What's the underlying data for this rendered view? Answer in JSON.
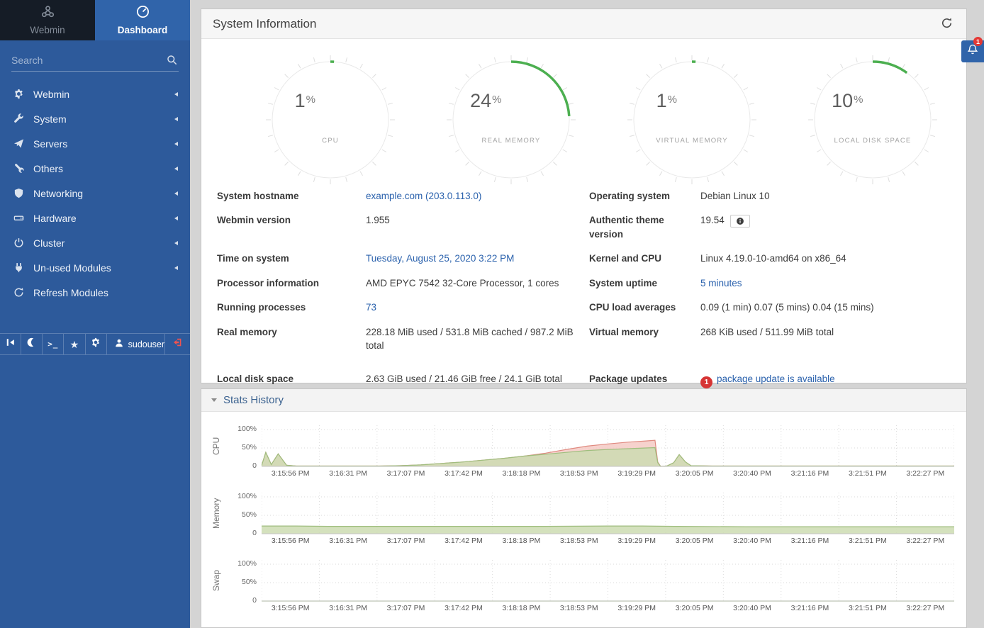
{
  "sidebar": {
    "tabs": [
      {
        "label": "Webmin"
      },
      {
        "label": "Dashboard"
      }
    ],
    "search": {
      "placeholder": "Search"
    },
    "menu": [
      {
        "label": "Webmin"
      },
      {
        "label": "System"
      },
      {
        "label": "Servers"
      },
      {
        "label": "Others"
      },
      {
        "label": "Networking"
      },
      {
        "label": "Hardware"
      },
      {
        "label": "Cluster"
      },
      {
        "label": "Un-used Modules"
      },
      {
        "label": "Refresh Modules"
      }
    ],
    "user": "sudouser"
  },
  "notifications": {
    "count": "1"
  },
  "system_info": {
    "title": "System Information",
    "rows_left": [
      {
        "label": "System hostname",
        "value": "example.com (203.0.113.0)",
        "link": true
      },
      {
        "label": "Webmin version",
        "value": "1.955",
        "link": false
      },
      {
        "label": "Time on system",
        "value": "Tuesday, August 25, 2020 3:22 PM",
        "link": true
      },
      {
        "label": "Processor information",
        "value": "AMD EPYC 7542 32-Core Processor, 1 cores",
        "link": false
      },
      {
        "label": "Running processes",
        "value": "73",
        "link": true
      },
      {
        "label": "Real memory",
        "value": "228.18 MiB used / 531.8 MiB cached / 987.2 MiB total",
        "link": false
      },
      {
        "label": "Local disk space",
        "value": "2.63 GiB used / 21.46 GiB free / 24.1 GiB total",
        "link": false
      }
    ],
    "rows_right": [
      {
        "label": "Operating system",
        "value": "Debian Linux 10",
        "link": false
      },
      {
        "label": "Authentic theme version",
        "value": "19.54",
        "link": false,
        "info_button": true
      },
      {
        "label": "Kernel and CPU",
        "value": "Linux 4.19.0-10-amd64 on x86_64",
        "link": false
      },
      {
        "label": "System uptime",
        "value": "5 minutes",
        "link": true
      },
      {
        "label": "CPU load averages",
        "value": "0.09 (1 min) 0.07 (5 mins) 0.04 (15 mins)",
        "link": false
      },
      {
        "label": "Virtual memory",
        "value": "268 KiB used / 511.99 MiB total",
        "link": false
      },
      {
        "label": "Package updates",
        "value": "package update is available",
        "link": true,
        "badge": "1"
      }
    ]
  },
  "gauges": [
    {
      "value": 1,
      "unit": "%",
      "label": "CPU"
    },
    {
      "value": 24,
      "unit": "%",
      "label": "REAL MEMORY"
    },
    {
      "value": 1,
      "unit": "%",
      "label": "VIRTUAL MEMORY"
    },
    {
      "value": 10,
      "unit": "%",
      "label": "LOCAL DISK SPACE"
    }
  ],
  "stats": {
    "title": "Stats History"
  },
  "chart_data": [
    {
      "type": "area",
      "title": "CPU",
      "ylabel": "CPU",
      "ylim": [
        0,
        100
      ],
      "grid": true,
      "y_ticks": [
        "100%",
        "50%",
        "0"
      ],
      "x_labels": [
        "3:15:56 PM",
        "3:16:31 PM",
        "3:17:07 PM",
        "3:17:42 PM",
        "3:18:18 PM",
        "3:18:53 PM",
        "3:19:29 PM",
        "3:20:05 PM",
        "3:20:40 PM",
        "3:21:16 PM",
        "3:21:51 PM",
        "3:22:27 PM"
      ],
      "series": [
        {
          "name": "cpu-system-stacked-total",
          "fill": "#f5cac4",
          "line": "#e08a80",
          "points": [
            [
              0,
              2
            ],
            [
              0.006,
              38
            ],
            [
              0.014,
              5
            ],
            [
              0.024,
              34
            ],
            [
              0.036,
              3
            ],
            [
              0.05,
              1
            ],
            [
              0.09,
              1
            ],
            [
              0.13,
              1
            ],
            [
              0.17,
              1
            ],
            [
              0.2,
              2
            ],
            [
              0.23,
              4
            ],
            [
              0.26,
              8
            ],
            [
              0.29,
              12
            ],
            [
              0.32,
              17
            ],
            [
              0.35,
              22
            ],
            [
              0.38,
              28
            ],
            [
              0.41,
              36
            ],
            [
              0.44,
              46
            ],
            [
              0.47,
              55
            ],
            [
              0.5,
              61
            ],
            [
              0.53,
              66
            ],
            [
              0.555,
              69
            ],
            [
              0.568,
              71
            ],
            [
              0.572,
              12
            ],
            [
              0.576,
              0
            ],
            [
              0.585,
              1
            ],
            [
              0.595,
              10
            ],
            [
              0.603,
              32
            ],
            [
              0.612,
              12
            ],
            [
              0.62,
              2
            ],
            [
              0.65,
              1
            ],
            [
              0.7,
              1
            ],
            [
              0.8,
              1
            ],
            [
              0.9,
              1
            ],
            [
              1,
              1
            ]
          ]
        },
        {
          "name": "cpu-user",
          "fill": "#ccdcb2",
          "line": "#9fbe7e",
          "points": [
            [
              0,
              2
            ],
            [
              0.006,
              38
            ],
            [
              0.014,
              5
            ],
            [
              0.024,
              34
            ],
            [
              0.036,
              3
            ],
            [
              0.05,
              1
            ],
            [
              0.09,
              1
            ],
            [
              0.13,
              1
            ],
            [
              0.17,
              1
            ],
            [
              0.2,
              2
            ],
            [
              0.23,
              4
            ],
            [
              0.26,
              8
            ],
            [
              0.29,
              12
            ],
            [
              0.32,
              17
            ],
            [
              0.35,
              22
            ],
            [
              0.38,
              28
            ],
            [
              0.41,
              33
            ],
            [
              0.44,
              38
            ],
            [
              0.47,
              43
            ],
            [
              0.5,
              46
            ],
            [
              0.53,
              48
            ],
            [
              0.555,
              50
            ],
            [
              0.568,
              51
            ],
            [
              0.572,
              10
            ],
            [
              0.576,
              0
            ],
            [
              0.585,
              1
            ],
            [
              0.595,
              10
            ],
            [
              0.603,
              32
            ],
            [
              0.612,
              12
            ],
            [
              0.62,
              2
            ],
            [
              0.65,
              1
            ],
            [
              0.7,
              1
            ],
            [
              0.8,
              1
            ],
            [
              0.9,
              1
            ],
            [
              1,
              1
            ]
          ]
        }
      ]
    },
    {
      "type": "area",
      "title": "Memory",
      "ylabel": "Memory",
      "ylim": [
        0,
        100
      ],
      "grid": true,
      "y_ticks": [
        "100%",
        "50%",
        "0"
      ],
      "x_labels": [
        "3:15:56 PM",
        "3:16:31 PM",
        "3:17:07 PM",
        "3:17:42 PM",
        "3:18:18 PM",
        "3:18:53 PM",
        "3:19:29 PM",
        "3:20:05 PM",
        "3:20:40 PM",
        "3:21:16 PM",
        "3:21:51 PM",
        "3:22:27 PM"
      ],
      "series": [
        {
          "name": "memory-used",
          "fill": "#ccdcb2",
          "line": "#9fbe7e",
          "points": [
            [
              0,
              21
            ],
            [
              0.05,
              21
            ],
            [
              0.1,
              20
            ],
            [
              0.2,
              20
            ],
            [
              0.3,
              20
            ],
            [
              0.4,
              20
            ],
            [
              0.5,
              21
            ],
            [
              0.55,
              21
            ],
            [
              0.6,
              20
            ],
            [
              0.7,
              19
            ],
            [
              0.8,
              19
            ],
            [
              0.9,
              19
            ],
            [
              1,
              19
            ]
          ]
        }
      ]
    },
    {
      "type": "area",
      "title": "Swap",
      "ylabel": "Swap",
      "ylim": [
        0,
        100
      ],
      "grid": true,
      "y_ticks": [
        "100%",
        "50%",
        "0"
      ],
      "x_labels": [
        "3:15:56 PM",
        "3:16:31 PM",
        "3:17:07 PM",
        "3:17:42 PM",
        "3:18:18 PM",
        "3:18:53 PM",
        "3:19:29 PM",
        "3:20:05 PM",
        "3:20:40 PM",
        "3:21:16 PM",
        "3:21:51 PM",
        "3:22:27 PM"
      ],
      "series": [
        {
          "name": "swap-used",
          "fill": "#ccdcb2",
          "line": "#9fbe7e",
          "points": [
            [
              0,
              0
            ],
            [
              1,
              0
            ]
          ]
        }
      ]
    }
  ],
  "icons": {
    "webmin-logo-icon": "node-cluster",
    "dashboard-icon": "tachometer",
    "search-icon": "magnifier",
    "gear-icon": "cog",
    "wrench-icon": "wrench",
    "paper-plane-icon": "send",
    "tools-icon": "wrench-rotated",
    "shield-icon": "shield",
    "hdd-icon": "drive",
    "power-icon": "power",
    "plug-icon": "plug",
    "refresh-icon": "circular-arrow",
    "collapse-sidebar-icon": "bar-left-triangle",
    "night-mode-icon": "moon",
    "terminal-icon": ">_",
    "favorites-icon": "star",
    "settings-icon": "cog",
    "user-icon": "person",
    "logout-icon": "sign-out",
    "bell-icon": "bell",
    "info-icon": "circled-i",
    "caret-left": "◂",
    "caret-down": "▾"
  },
  "colors": {
    "sidebar": "#2d5a9b",
    "tab_active": "#3064aa",
    "tab_inactive": "#151c26",
    "page_bg": "#d4d4d4",
    "link": "#2b62ad",
    "gauge_arc": "#4caf50",
    "badge_red": "#d63434",
    "bell_badge": "#e53935",
    "chart_green_fill": "#ccdcb2",
    "chart_green_line": "#9fbe7e",
    "chart_red_fill": "#f5cac4",
    "chart_red_line": "#e08a80",
    "logout_red": "#ef5350"
  }
}
